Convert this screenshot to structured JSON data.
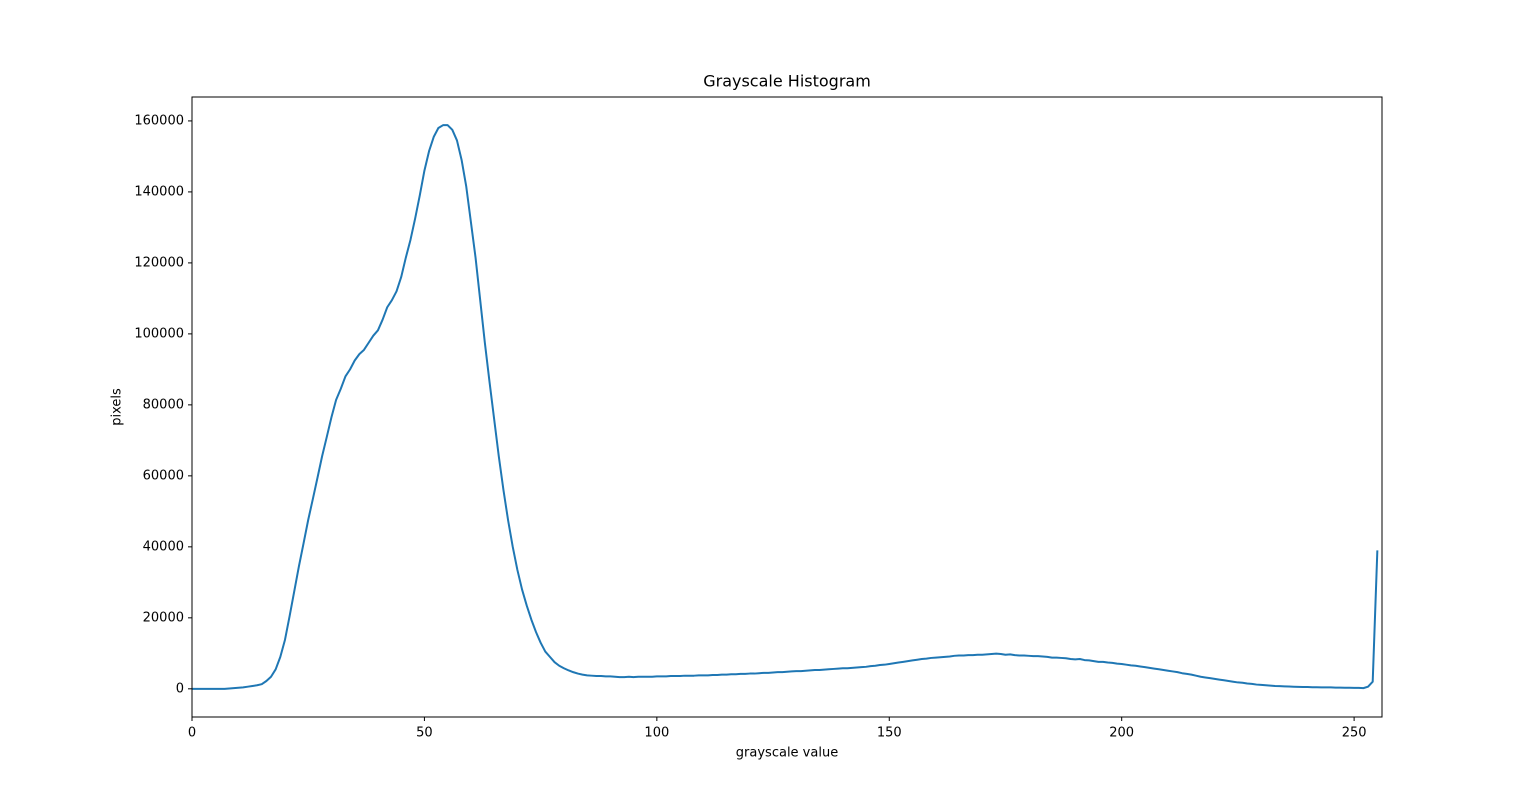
{
  "chart_data": {
    "type": "line",
    "title": "Grayscale Histogram",
    "x_label": "grayscale value",
    "y_label": "pixels",
    "color": "#1f77b4",
    "x": [
      0,
      1,
      2,
      3,
      4,
      5,
      6,
      7,
      8,
      9,
      10,
      11,
      12,
      13,
      14,
      15,
      16,
      17,
      18,
      19,
      20,
      21,
      22,
      23,
      24,
      25,
      26,
      27,
      28,
      29,
      30,
      31,
      32,
      33,
      34,
      35,
      36,
      37,
      38,
      39,
      40,
      41,
      42,
      43,
      44,
      45,
      46,
      47,
      48,
      49,
      50,
      51,
      52,
      53,
      54,
      55,
      56,
      57,
      58,
      59,
      60,
      61,
      62,
      63,
      64,
      65,
      66,
      67,
      68,
      69,
      70,
      71,
      72,
      73,
      74,
      75,
      76,
      77,
      78,
      79,
      80,
      81,
      82,
      83,
      84,
      85,
      86,
      87,
      88,
      89,
      90,
      91,
      92,
      93,
      94,
      95,
      96,
      97,
      98,
      99,
      100,
      101,
      102,
      103,
      104,
      105,
      106,
      107,
      108,
      109,
      110,
      111,
      112,
      113,
      114,
      115,
      116,
      117,
      118,
      119,
      120,
      121,
      122,
      123,
      124,
      125,
      126,
      127,
      128,
      129,
      130,
      131,
      132,
      133,
      134,
      135,
      136,
      137,
      138,
      139,
      140,
      141,
      142,
      143,
      144,
      145,
      146,
      147,
      148,
      149,
      150,
      151,
      152,
      153,
      154,
      155,
      156,
      157,
      158,
      159,
      160,
      161,
      162,
      163,
      164,
      165,
      166,
      167,
      168,
      169,
      170,
      171,
      172,
      173,
      174,
      175,
      176,
      177,
      178,
      179,
      180,
      181,
      182,
      183,
      184,
      185,
      186,
      187,
      188,
      189,
      190,
      191,
      192,
      193,
      194,
      195,
      196,
      197,
      198,
      199,
      200,
      201,
      202,
      203,
      204,
      205,
      206,
      207,
      208,
      209,
      210,
      211,
      212,
      213,
      214,
      215,
      216,
      217,
      218,
      219,
      220,
      221,
      222,
      223,
      224,
      225,
      226,
      227,
      228,
      229,
      230,
      231,
      232,
      233,
      234,
      235,
      236,
      237,
      238,
      239,
      240,
      241,
      242,
      243,
      244,
      245,
      246,
      247,
      248,
      249,
      250,
      251,
      252,
      253,
      254,
      255
    ],
    "values": [
      0,
      0,
      0,
      0,
      0,
      0,
      0,
      0,
      100,
      200,
      300,
      400,
      600,
      800,
      1000,
      1300,
      2200,
      3400,
      5500,
      9000,
      13800,
      20500,
      27500,
      34500,
      41000,
      47600,
      53500,
      59500,
      65600,
      71000,
      76500,
      81400,
      84500,
      88000,
      90000,
      92500,
      94300,
      95500,
      97500,
      99500,
      101000,
      104000,
      107500,
      109500,
      112000,
      116000,
      121500,
      126500,
      132500,
      139000,
      146000,
      151500,
      155500,
      158000,
      158800,
      158800,
      157500,
      154500,
      149000,
      141500,
      131500,
      121500,
      109500,
      97500,
      86500,
      76000,
      65500,
      56000,
      47500,
      40000,
      33500,
      28000,
      23500,
      19500,
      16000,
      13000,
      10500,
      9000,
      7500,
      6500,
      5800,
      5200,
      4700,
      4300,
      4000,
      3800,
      3700,
      3600,
      3600,
      3500,
      3500,
      3400,
      3300,
      3300,
      3400,
      3300,
      3400,
      3400,
      3400,
      3400,
      3500,
      3500,
      3500,
      3600,
      3600,
      3600,
      3700,
      3700,
      3700,
      3800,
      3800,
      3800,
      3900,
      3900,
      4000,
      4000,
      4100,
      4100,
      4200,
      4200,
      4300,
      4300,
      4400,
      4500,
      4500,
      4600,
      4700,
      4700,
      4800,
      4900,
      5000,
      5000,
      5100,
      5200,
      5300,
      5300,
      5400,
      5500,
      5600,
      5700,
      5800,
      5800,
      5900,
      6000,
      6100,
      6200,
      6400,
      6500,
      6700,
      6800,
      7000,
      7200,
      7400,
      7600,
      7800,
      8000,
      8200,
      8400,
      8500,
      8700,
      8800,
      8900,
      9000,
      9100,
      9300,
      9400,
      9400,
      9500,
      9500,
      9600,
      9600,
      9700,
      9800,
      9900,
      9800,
      9600,
      9700,
      9500,
      9400,
      9400,
      9300,
      9200,
      9200,
      9100,
      9000,
      8800,
      8800,
      8700,
      8600,
      8400,
      8300,
      8400,
      8100,
      8000,
      7800,
      7600,
      7600,
      7400,
      7300,
      7100,
      7000,
      6800,
      6600,
      6500,
      6300,
      6100,
      5900,
      5700,
      5500,
      5300,
      5100,
      4900,
      4700,
      4400,
      4200,
      4000,
      3700,
      3400,
      3200,
      3000,
      2800,
      2600,
      2400,
      2200,
      2000,
      1800,
      1700,
      1500,
      1400,
      1200,
      1100,
      1000,
      900,
      800,
      750,
      700,
      650,
      600,
      550,
      500,
      500,
      450,
      450,
      400,
      400,
      400,
      350,
      350,
      300,
      300,
      250,
      250,
      200,
      600,
      2000,
      39000
    ],
    "xlim": [
      0,
      256
    ],
    "xticks": [
      0,
      50,
      100,
      150,
      200,
      250
    ],
    "ylim": [
      -7940,
      166740
    ],
    "yticks": [
      0,
      20000,
      40000,
      60000,
      80000,
      100000,
      120000,
      140000,
      160000
    ]
  }
}
